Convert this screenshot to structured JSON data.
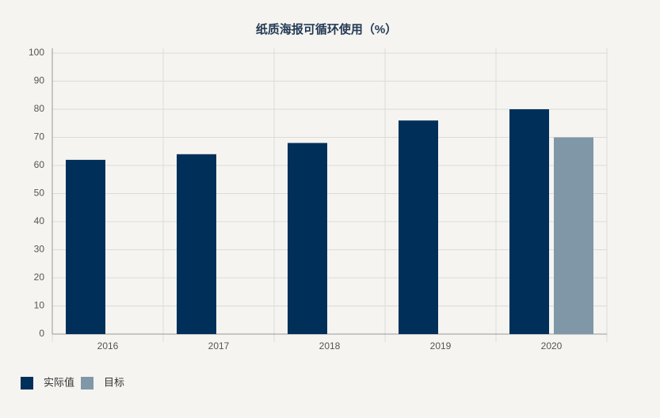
{
  "chart_data": {
    "type": "bar",
    "title": "纸质海报可循环使用（%）",
    "categories": [
      "2016",
      "2017",
      "2018",
      "2019",
      "2020"
    ],
    "series": [
      {
        "name": "实际值",
        "color": "#00305a",
        "values": [
          62,
          64,
          68,
          76,
          80
        ]
      },
      {
        "name": "目标",
        "color": "#7f97a6",
        "values": [
          null,
          null,
          null,
          null,
          70
        ]
      }
    ],
    "ylim": [
      0,
      100
    ],
    "yticks": [
      0,
      10,
      20,
      30,
      40,
      50,
      60,
      70,
      80,
      90,
      100
    ],
    "grid": true
  }
}
